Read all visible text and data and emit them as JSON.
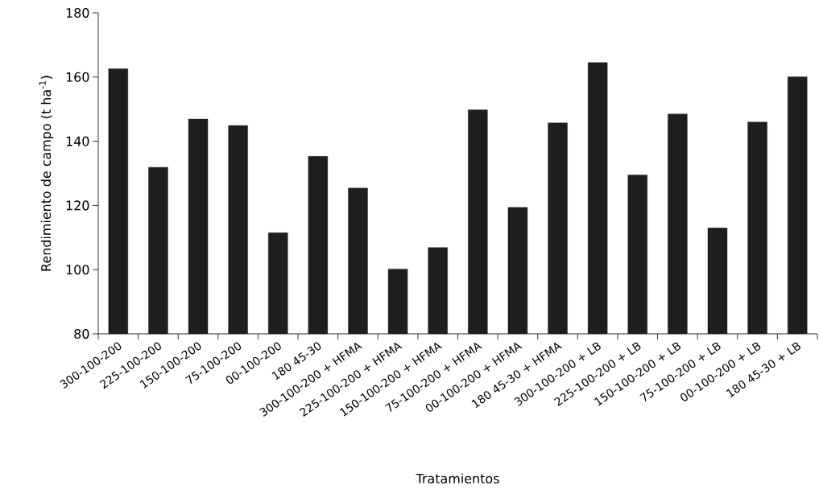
{
  "chart_data": {
    "type": "bar",
    "xlabel": "Tratamientos",
    "ylabel": "Rendimiento de campo (t ha$^{-1}$)",
    "categories": [
      "300-100-200",
      "225-100-200",
      "150-100-200",
      "75-100-200",
      "00-100-200",
      "180 45-30",
      "300-100-200 + HFMA",
      "225-100-200 + HFMA",
      "150-100-200 + HFMA",
      "75-100-200 + HFMA",
      "00-100-200 + HFMA",
      "180 45-30 + HFMA",
      "300-100-200 + LB",
      "225-100-200 + LB",
      "150-100-200 + LB",
      "75-100-200 + LB",
      "00-100-200 + LB",
      "180 45-30 + LB"
    ],
    "values": [
      162.6,
      131.9,
      146.9,
      144.9,
      111.5,
      135.3,
      125.4,
      100.2,
      106.9,
      149.8,
      119.4,
      145.7,
      164.5,
      129.5,
      148.5,
      113.0,
      146.0,
      160.1
    ],
    "color": "#1e1e1c",
    "ylim": [
      80,
      180
    ],
    "yticks": [
      80,
      100,
      120,
      140,
      160,
      180
    ],
    "grid": false
  }
}
